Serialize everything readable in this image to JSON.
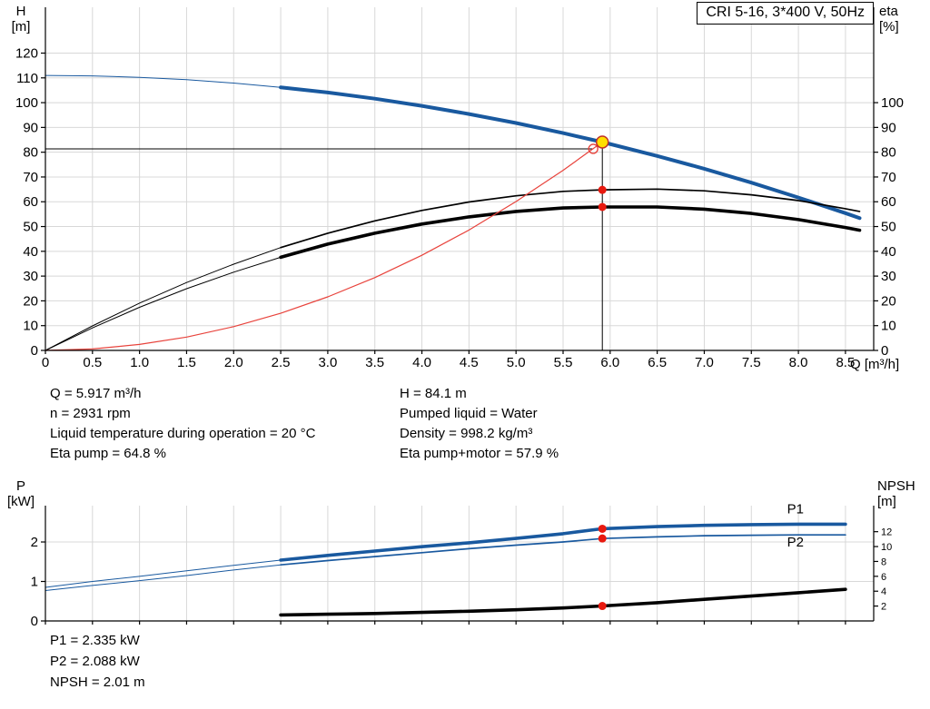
{
  "header": {
    "title_box": "CRI 5-16, 3*400 V, 50Hz"
  },
  "axes_labels": {
    "top_left": [
      "H",
      "[m]"
    ],
    "top_right": [
      "eta",
      "[%]"
    ],
    "bottom_left": [
      "P",
      "[kW]"
    ],
    "bottom_right": [
      "NPSH",
      "[m]"
    ],
    "x_unit": "Q [m³/h]"
  },
  "info_top": {
    "left": [
      "Q = 5.917 m³/h",
      "n = 2931 rpm",
      "Liquid temperature during operation = 20 °C",
      "Eta pump = 64.8 %"
    ],
    "right": [
      "H = 84.1 m",
      "Pumped liquid = Water",
      "Density = 998.2 kg/m³",
      "Eta pump+motor = 57.9 %"
    ]
  },
  "info_bottom": [
    "P1 = 2.335 kW",
    "P2 = 2.088 kW",
    "NPSH = 2.01 m"
  ],
  "colors": {
    "curve_blue": "#19599f",
    "curve_black": "#000000",
    "curve_red": "#e8433c",
    "duty_fill": "#ffdf00",
    "duty_ring": "#c03028",
    "dot_red": "#e8190f",
    "grid": "#d8d8d8"
  },
  "chart_data": [
    {
      "id": "qh_eta",
      "type": "line",
      "title": "CRI 5-16, 3*400 V, 50Hz",
      "xlabel": "Q [m³/h]",
      "ylabel": "H [m]",
      "ylabel_right": "eta [%]",
      "xlim": [
        0,
        8.8
      ],
      "ylim_left": [
        0,
        138.5
      ],
      "ylim_right": [
        0,
        138.5
      ],
      "grid": true,
      "xticks": {
        "values": [
          0,
          0.5,
          1,
          1.5,
          2,
          2.5,
          3,
          3.5,
          4,
          4.5,
          5,
          5.5,
          6,
          6.5,
          7,
          7.5,
          8,
          8.5
        ],
        "labels": [
          "0",
          "0.5",
          "1.0",
          "1.5",
          "2.0",
          "2.5",
          "3.0",
          "3.5",
          "4.0",
          "4.5",
          "5.0",
          "5.5",
          "6.0",
          "6.5",
          "7.0",
          "7.5",
          "8.0",
          "8.5"
        ]
      },
      "yticks_left": {
        "values": [
          0,
          10,
          20,
          30,
          40,
          50,
          60,
          70,
          80,
          90,
          100,
          110,
          120
        ],
        "labels": [
          "0",
          "10",
          "20",
          "30",
          "40",
          "50",
          "60",
          "70",
          "80",
          "90",
          "100",
          "110",
          "120"
        ]
      },
      "yticks_right": {
        "values": [
          0,
          10,
          20,
          30,
          40,
          50,
          60,
          70,
          80,
          90,
          100
        ],
        "labels": [
          "0",
          "10",
          "20",
          "30",
          "40",
          "50",
          "60",
          "70",
          "80",
          "90",
          "100"
        ]
      },
      "series": [
        {
          "name": "head-curve-lead",
          "axis": "left",
          "color": "#19599f",
          "width": 1,
          "x": [
            0,
            0.5,
            1,
            1.5,
            2,
            2.5
          ],
          "y": [
            111,
            110.8,
            110.2,
            109.3,
            107.9,
            106.2
          ]
        },
        {
          "name": "head-curve",
          "axis": "left",
          "color": "#19599f",
          "width": 4,
          "x": [
            2.5,
            3,
            3.5,
            4,
            4.5,
            5,
            5.5,
            5.917,
            6.5,
            7,
            7.5,
            8,
            8.5,
            8.65
          ],
          "y": [
            106.2,
            104.1,
            101.6,
            98.7,
            95.4,
            91.8,
            87.7,
            84.1,
            78.5,
            73.3,
            67.7,
            61.7,
            55.4,
            53.4
          ]
        },
        {
          "name": "eta-pump-curve-lead",
          "axis": "left",
          "color": "#000000",
          "width": 1,
          "x": [
            0,
            0.5,
            1,
            1.5,
            2,
            2.5
          ],
          "y": [
            0,
            9.9,
            19.1,
            27.4,
            34.8,
            41.5
          ]
        },
        {
          "name": "eta-pump-curve",
          "axis": "left",
          "color": "#000000",
          "width": 1.7,
          "x": [
            2.5,
            3,
            3.5,
            4,
            4.5,
            5,
            5.5,
            5.917,
            6.5,
            7,
            7.5,
            8,
            8.5,
            8.65
          ],
          "y": [
            41.5,
            47.3,
            52.3,
            56.5,
            59.9,
            62.4,
            64.2,
            64.8,
            65.1,
            64.4,
            62.8,
            60.5,
            57.2,
            56.1
          ]
        },
        {
          "name": "eta-pump-motor-curve-lead",
          "axis": "left",
          "color": "#000000",
          "width": 1,
          "x": [
            0,
            0.5,
            1,
            1.5,
            2,
            2.5
          ],
          "y": [
            0,
            9.1,
            17.4,
            24.9,
            31.6,
            37.6
          ]
        },
        {
          "name": "eta-pump-motor-curve",
          "axis": "left",
          "color": "#000000",
          "width": 3.6,
          "x": [
            2.5,
            3,
            3.5,
            4,
            4.5,
            5,
            5.5,
            5.917,
            6.5,
            7,
            7.5,
            8,
            8.5,
            8.65
          ],
          "y": [
            37.6,
            42.9,
            47.3,
            51.0,
            53.9,
            56.1,
            57.5,
            57.9,
            57.9,
            57.0,
            55.3,
            52.8,
            49.6,
            48.5
          ]
        },
        {
          "name": "system-curve",
          "axis": "left",
          "color": "#e8433c",
          "width": 1.2,
          "x": [
            0,
            0.5,
            1,
            1.5,
            2,
            2.5,
            3,
            3.5,
            4,
            4.5,
            5,
            5.5,
            5.917
          ],
          "y": [
            0,
            0.6,
            2.4,
            5.4,
            9.6,
            15.0,
            21.6,
            29.4,
            38.4,
            48.6,
            60.1,
            72.7,
            84.1
          ]
        }
      ],
      "guides": [
        {
          "type": "v",
          "x": 5.917,
          "y1": 0,
          "y2": 84.1,
          "color": "#000000",
          "width": 1
        },
        {
          "type": "h",
          "y": 81.35,
          "x1": 0,
          "x2": 5.82,
          "color": "#000000",
          "width": 1
        }
      ],
      "markers": [
        {
          "name": "requested-duty-point",
          "x": 5.82,
          "y": 81.35,
          "axis": "left",
          "r": 5,
          "fill": "none",
          "stroke": "#e8433c",
          "sw": 1.4
        },
        {
          "name": "duty-point",
          "x": 5.917,
          "y": 84.1,
          "axis": "left",
          "r": 6.5,
          "fill": "#ffdf00",
          "stroke": "#c03028",
          "sw": 1.5
        },
        {
          "name": "eta-pump-duty-point",
          "x": 5.917,
          "y": 64.8,
          "axis": "left",
          "r": 4.5,
          "fill": "#e8190f"
        },
        {
          "name": "eta-pump-motor-duty-point",
          "x": 5.917,
          "y": 57.9,
          "axis": "left",
          "r": 4.5,
          "fill": "#e8190f"
        }
      ],
      "labels": []
    },
    {
      "id": "p_npsh",
      "type": "line",
      "title": "",
      "xlabel": "Q [m³/h]",
      "ylabel": "P [kW]",
      "ylabel_right": "NPSH [m]",
      "xlim": [
        0,
        8.8
      ],
      "ylim_left": [
        0,
        2.92
      ],
      "ylim_right": [
        0,
        15.5
      ],
      "grid": true,
      "xticks": {
        "values": [
          0,
          0.5,
          1,
          1.5,
          2,
          2.5,
          3,
          3.5,
          4,
          4.5,
          5,
          5.5,
          6,
          6.5,
          7,
          7.5,
          8,
          8.5
        ],
        "labels": []
      },
      "yticks_left": {
        "values": [
          0,
          1,
          2
        ],
        "labels": [
          "0",
          "1",
          "2"
        ]
      },
      "yticks_right": {
        "values": [
          2,
          4,
          6,
          8,
          10,
          12
        ],
        "labels": [
          "2",
          "4",
          "6",
          "8",
          "10",
          "12"
        ]
      },
      "series": [
        {
          "name": "p1-curve-lead",
          "axis": "left",
          "color": "#19599f",
          "width": 1,
          "x": [
            0,
            0.5,
            1,
            1.5,
            2,
            2.5
          ],
          "y": [
            0.85,
            1.0,
            1.13,
            1.27,
            1.41,
            1.54
          ]
        },
        {
          "name": "p1-curve",
          "axis": "left",
          "color": "#19599f",
          "width": 3.6,
          "x": [
            2.5,
            3,
            3.5,
            4,
            4.5,
            5,
            5.5,
            5.917,
            6.5,
            7,
            7.5,
            8,
            8.5
          ],
          "y": [
            1.54,
            1.66,
            1.77,
            1.88,
            1.98,
            2.09,
            2.21,
            2.335,
            2.39,
            2.42,
            2.44,
            2.45,
            2.45
          ]
        },
        {
          "name": "p2-curve-lead",
          "axis": "left",
          "color": "#19599f",
          "width": 1,
          "x": [
            0,
            0.5,
            1,
            1.5,
            2,
            2.5
          ],
          "y": [
            0.77,
            0.9,
            1.02,
            1.15,
            1.29,
            1.42
          ]
        },
        {
          "name": "p2-curve",
          "axis": "left",
          "color": "#19599f",
          "width": 1.7,
          "x": [
            2.5,
            3,
            3.5,
            4,
            4.5,
            5,
            5.5,
            5.917,
            6.5,
            7,
            7.5,
            8,
            8.5
          ],
          "y": [
            1.42,
            1.53,
            1.63,
            1.73,
            1.83,
            1.92,
            2.0,
            2.088,
            2.13,
            2.16,
            2.17,
            2.18,
            2.18
          ]
        },
        {
          "name": "npsh-curve",
          "axis": "right",
          "color": "#000000",
          "width": 3.6,
          "x": [
            2.5,
            3,
            3.5,
            4,
            4.5,
            5,
            5.5,
            5.917,
            6.5,
            7,
            7.5,
            8,
            8.5
          ],
          "y": [
            0.8,
            0.9,
            1.0,
            1.15,
            1.3,
            1.5,
            1.75,
            2.01,
            2.45,
            2.9,
            3.35,
            3.8,
            4.25
          ]
        }
      ],
      "guides": [],
      "markers": [
        {
          "name": "p1-duty-point",
          "x": 5.917,
          "y": 2.335,
          "axis": "left",
          "r": 4.5,
          "fill": "#e8190f"
        },
        {
          "name": "p2-duty-point",
          "x": 5.917,
          "y": 2.088,
          "axis": "left",
          "r": 4.5,
          "fill": "#e8190f"
        },
        {
          "name": "npsh-duty-point",
          "x": 5.917,
          "y": 2.01,
          "axis": "right",
          "r": 4.5,
          "fill": "#e8190f"
        }
      ],
      "labels": [
        {
          "text": "P1",
          "x": 7.88,
          "y": 2.72,
          "axis": "left",
          "color": "#19599f"
        },
        {
          "text": "P2",
          "x": 7.88,
          "y": 1.88,
          "axis": "left",
          "color": "#19599f"
        }
      ]
    }
  ]
}
